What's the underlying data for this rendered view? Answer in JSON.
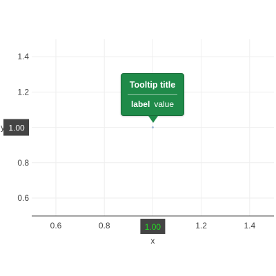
{
  "chart_data": {
    "type": "scatter",
    "x": [
      1.0
    ],
    "y": [
      1.0
    ],
    "xlim": [
      0.5,
      1.5
    ],
    "ylim": [
      0.5,
      1.5
    ],
    "x_ticks": [
      "0.6",
      "0.8",
      "1.0",
      "1.2",
      "1.4"
    ],
    "y_ticks": [
      "0.6",
      "0.8",
      "1.0",
      "1.2",
      "1.4"
    ],
    "xlabel": "x",
    "ylabel": "y",
    "grid": true,
    "hover_x_label": "1.00",
    "hover_y_label": "1.00"
  },
  "tooltip": {
    "title": "Tooltip title",
    "label": "label",
    "value": "value"
  },
  "colors": {
    "tooltip_bg": "#1f8a49",
    "hover_label_bg": "#444444",
    "hover_x_text": "#22dd22",
    "hover_y_text": "#ffffff",
    "grid": "#eeeeee",
    "axis": "#444444",
    "point": "#9fb6d6"
  }
}
